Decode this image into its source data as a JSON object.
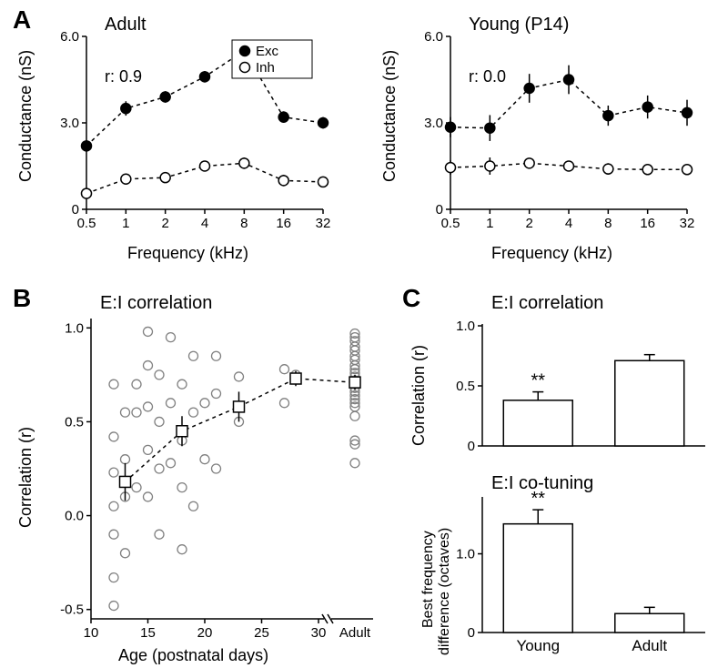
{
  "panelA": {
    "label": "A",
    "left": {
      "title": "Adult",
      "annotation": "r: 0.9",
      "xlabel": "Frequency (kHz)",
      "ylabel": "Conductance (nS)",
      "xticks": [
        0.5,
        1,
        2,
        4,
        8,
        16,
        32
      ],
      "yticks": [
        0,
        3.0,
        6.0
      ],
      "ylim": [
        0,
        6.0
      ],
      "series": {
        "exc": {
          "label": "Exc",
          "marker": "filled-circle",
          "color": "#000000",
          "y": [
            2.2,
            3.5,
            3.9,
            4.6,
            5.5,
            3.2,
            3.0
          ],
          "err": [
            0.2,
            0.25,
            0.2,
            0.2,
            0.25,
            0.2,
            0.2
          ]
        },
        "inh": {
          "label": "Inh",
          "marker": "open-circle",
          "color": "#000000",
          "y": [
            0.55,
            1.05,
            1.1,
            1.5,
            1.6,
            1.0,
            0.95
          ],
          "err": [
            0.1,
            0.15,
            0.12,
            0.15,
            0.2,
            0.2,
            0.15
          ]
        }
      },
      "legend": {
        "items": [
          "Exc",
          "Inh"
        ]
      }
    },
    "right": {
      "title": "Young (P14)",
      "annotation": "r: 0.0",
      "xlabel": "Frequency (kHz)",
      "ylabel": "Conductance (nS)",
      "xticks": [
        0.5,
        1,
        2,
        4,
        8,
        16,
        32
      ],
      "yticks": [
        0,
        3.0,
        6.0
      ],
      "ylim": [
        0,
        6.0
      ],
      "series": {
        "exc": {
          "marker": "filled-circle",
          "color": "#000000",
          "y": [
            2.85,
            2.82,
            4.2,
            4.5,
            3.25,
            3.55,
            3.35
          ],
          "err": [
            0.35,
            0.45,
            0.5,
            0.5,
            0.35,
            0.4,
            0.45
          ]
        },
        "inh": {
          "marker": "open-circle",
          "color": "#000000",
          "y": [
            1.45,
            1.5,
            1.6,
            1.5,
            1.4,
            1.38,
            1.38
          ],
          "err": [
            0.25,
            0.3,
            0.15,
            0.1,
            0.2,
            0.15,
            0.1
          ]
        }
      }
    }
  },
  "panelB": {
    "label": "B",
    "title": "E:I correlation",
    "xlabel": "Age (postnatal days)",
    "ylabel": "Correlation (r)",
    "xticks_days": [
      10,
      15,
      20,
      25,
      30
    ],
    "xtick_extra": "Adult",
    "yticks": [
      -0.5,
      0.0,
      0.5,
      1.0
    ],
    "ylim": [
      -0.55,
      1.05
    ],
    "summary": {
      "marker": "open-square",
      "color": "#000000",
      "x": [
        13,
        18,
        23,
        28,
        35
      ],
      "y": [
        0.18,
        0.45,
        0.58,
        0.73,
        0.71
      ],
      "err": [
        0.1,
        0.08,
        0.08,
        0.04,
        0.04
      ]
    },
    "scatter": {
      "marker": "open-circle",
      "color": "#808080",
      "points": [
        [
          12,
          0.7
        ],
        [
          12,
          0.42
        ],
        [
          12,
          0.23
        ],
        [
          12,
          0.05
        ],
        [
          12,
          -0.1
        ],
        [
          12,
          -0.33
        ],
        [
          12,
          -0.48
        ],
        [
          13,
          0.55
        ],
        [
          13,
          0.3
        ],
        [
          13,
          0.1
        ],
        [
          13,
          -0.2
        ],
        [
          13,
          0.18
        ],
        [
          14,
          0.15
        ],
        [
          14,
          0.55
        ],
        [
          14,
          0.7
        ],
        [
          15,
          0.98
        ],
        [
          15,
          0.8
        ],
        [
          15,
          0.58
        ],
        [
          15,
          0.35
        ],
        [
          15,
          0.1
        ],
        [
          16,
          0.75
        ],
        [
          16,
          0.5
        ],
        [
          16,
          0.25
        ],
        [
          16,
          -0.1
        ],
        [
          17,
          0.95
        ],
        [
          17,
          0.6
        ],
        [
          17,
          0.28
        ],
        [
          18,
          0.7
        ],
        [
          18,
          0.4
        ],
        [
          18,
          0.15
        ],
        [
          18,
          -0.18
        ],
        [
          19,
          0.85
        ],
        [
          19,
          0.55
        ],
        [
          19,
          0.05
        ],
        [
          20,
          0.6
        ],
        [
          20,
          0.3
        ],
        [
          21,
          0.85
        ],
        [
          21,
          0.65
        ],
        [
          21,
          0.25
        ],
        [
          23,
          0.74
        ],
        [
          23,
          0.5
        ],
        [
          27,
          0.78
        ],
        [
          27,
          0.6
        ],
        [
          28,
          0.75
        ],
        [
          35,
          0.97
        ],
        [
          35,
          0.95
        ],
        [
          35,
          0.93
        ],
        [
          35,
          0.9
        ],
        [
          35,
          0.88
        ],
        [
          35,
          0.85
        ],
        [
          35,
          0.83
        ],
        [
          35,
          0.8
        ],
        [
          35,
          0.78
        ],
        [
          35,
          0.76
        ],
        [
          35,
          0.74
        ],
        [
          35,
          0.72
        ],
        [
          35,
          0.7
        ],
        [
          35,
          0.68
        ],
        [
          35,
          0.66
        ],
        [
          35,
          0.64
        ],
        [
          35,
          0.62
        ],
        [
          35,
          0.6
        ],
        [
          35,
          0.58
        ],
        [
          35,
          0.53
        ],
        [
          35,
          0.4
        ],
        [
          35,
          0.38
        ],
        [
          35,
          0.28
        ]
      ]
    }
  },
  "panelC": {
    "label": "C",
    "top": {
      "title": "E:I correlation",
      "ylabel": "Correlation (r)",
      "categories": [
        "Young",
        "Adult"
      ],
      "values": [
        0.38,
        0.71
      ],
      "err": [
        0.07,
        0.05
      ],
      "yticks": [
        0,
        0.5,
        1.0
      ],
      "ylim": [
        0,
        1.0
      ],
      "sig": "**",
      "sig_on": 0,
      "bar_color": "#ffffff",
      "border_color": "#000000"
    },
    "bottom": {
      "title": "E:I co-tuning",
      "ylabel_line1": "Best frequency",
      "ylabel_line2": "difference (octaves)",
      "categories": [
        "Young",
        "Adult"
      ],
      "values": [
        1.38,
        0.24
      ],
      "err": [
        0.18,
        0.08
      ],
      "yticks": [
        0,
        1.0
      ],
      "ylim": [
        0,
        1.7
      ],
      "sig": "**",
      "sig_on": 0,
      "bar_color": "#ffffff",
      "border_color": "#000000"
    }
  },
  "style": {
    "background": "#ffffff",
    "axis_color": "#000000",
    "line_dash": "4,4",
    "line_width": 1.5,
    "marker_radius": 5.5,
    "scatter_radius": 5,
    "bar_border_width": 1.5,
    "font_family": "Arial",
    "panel_label_fontsize": 28,
    "title_fontsize": 20,
    "axis_label_fontsize": 18,
    "tick_fontsize": 15
  }
}
